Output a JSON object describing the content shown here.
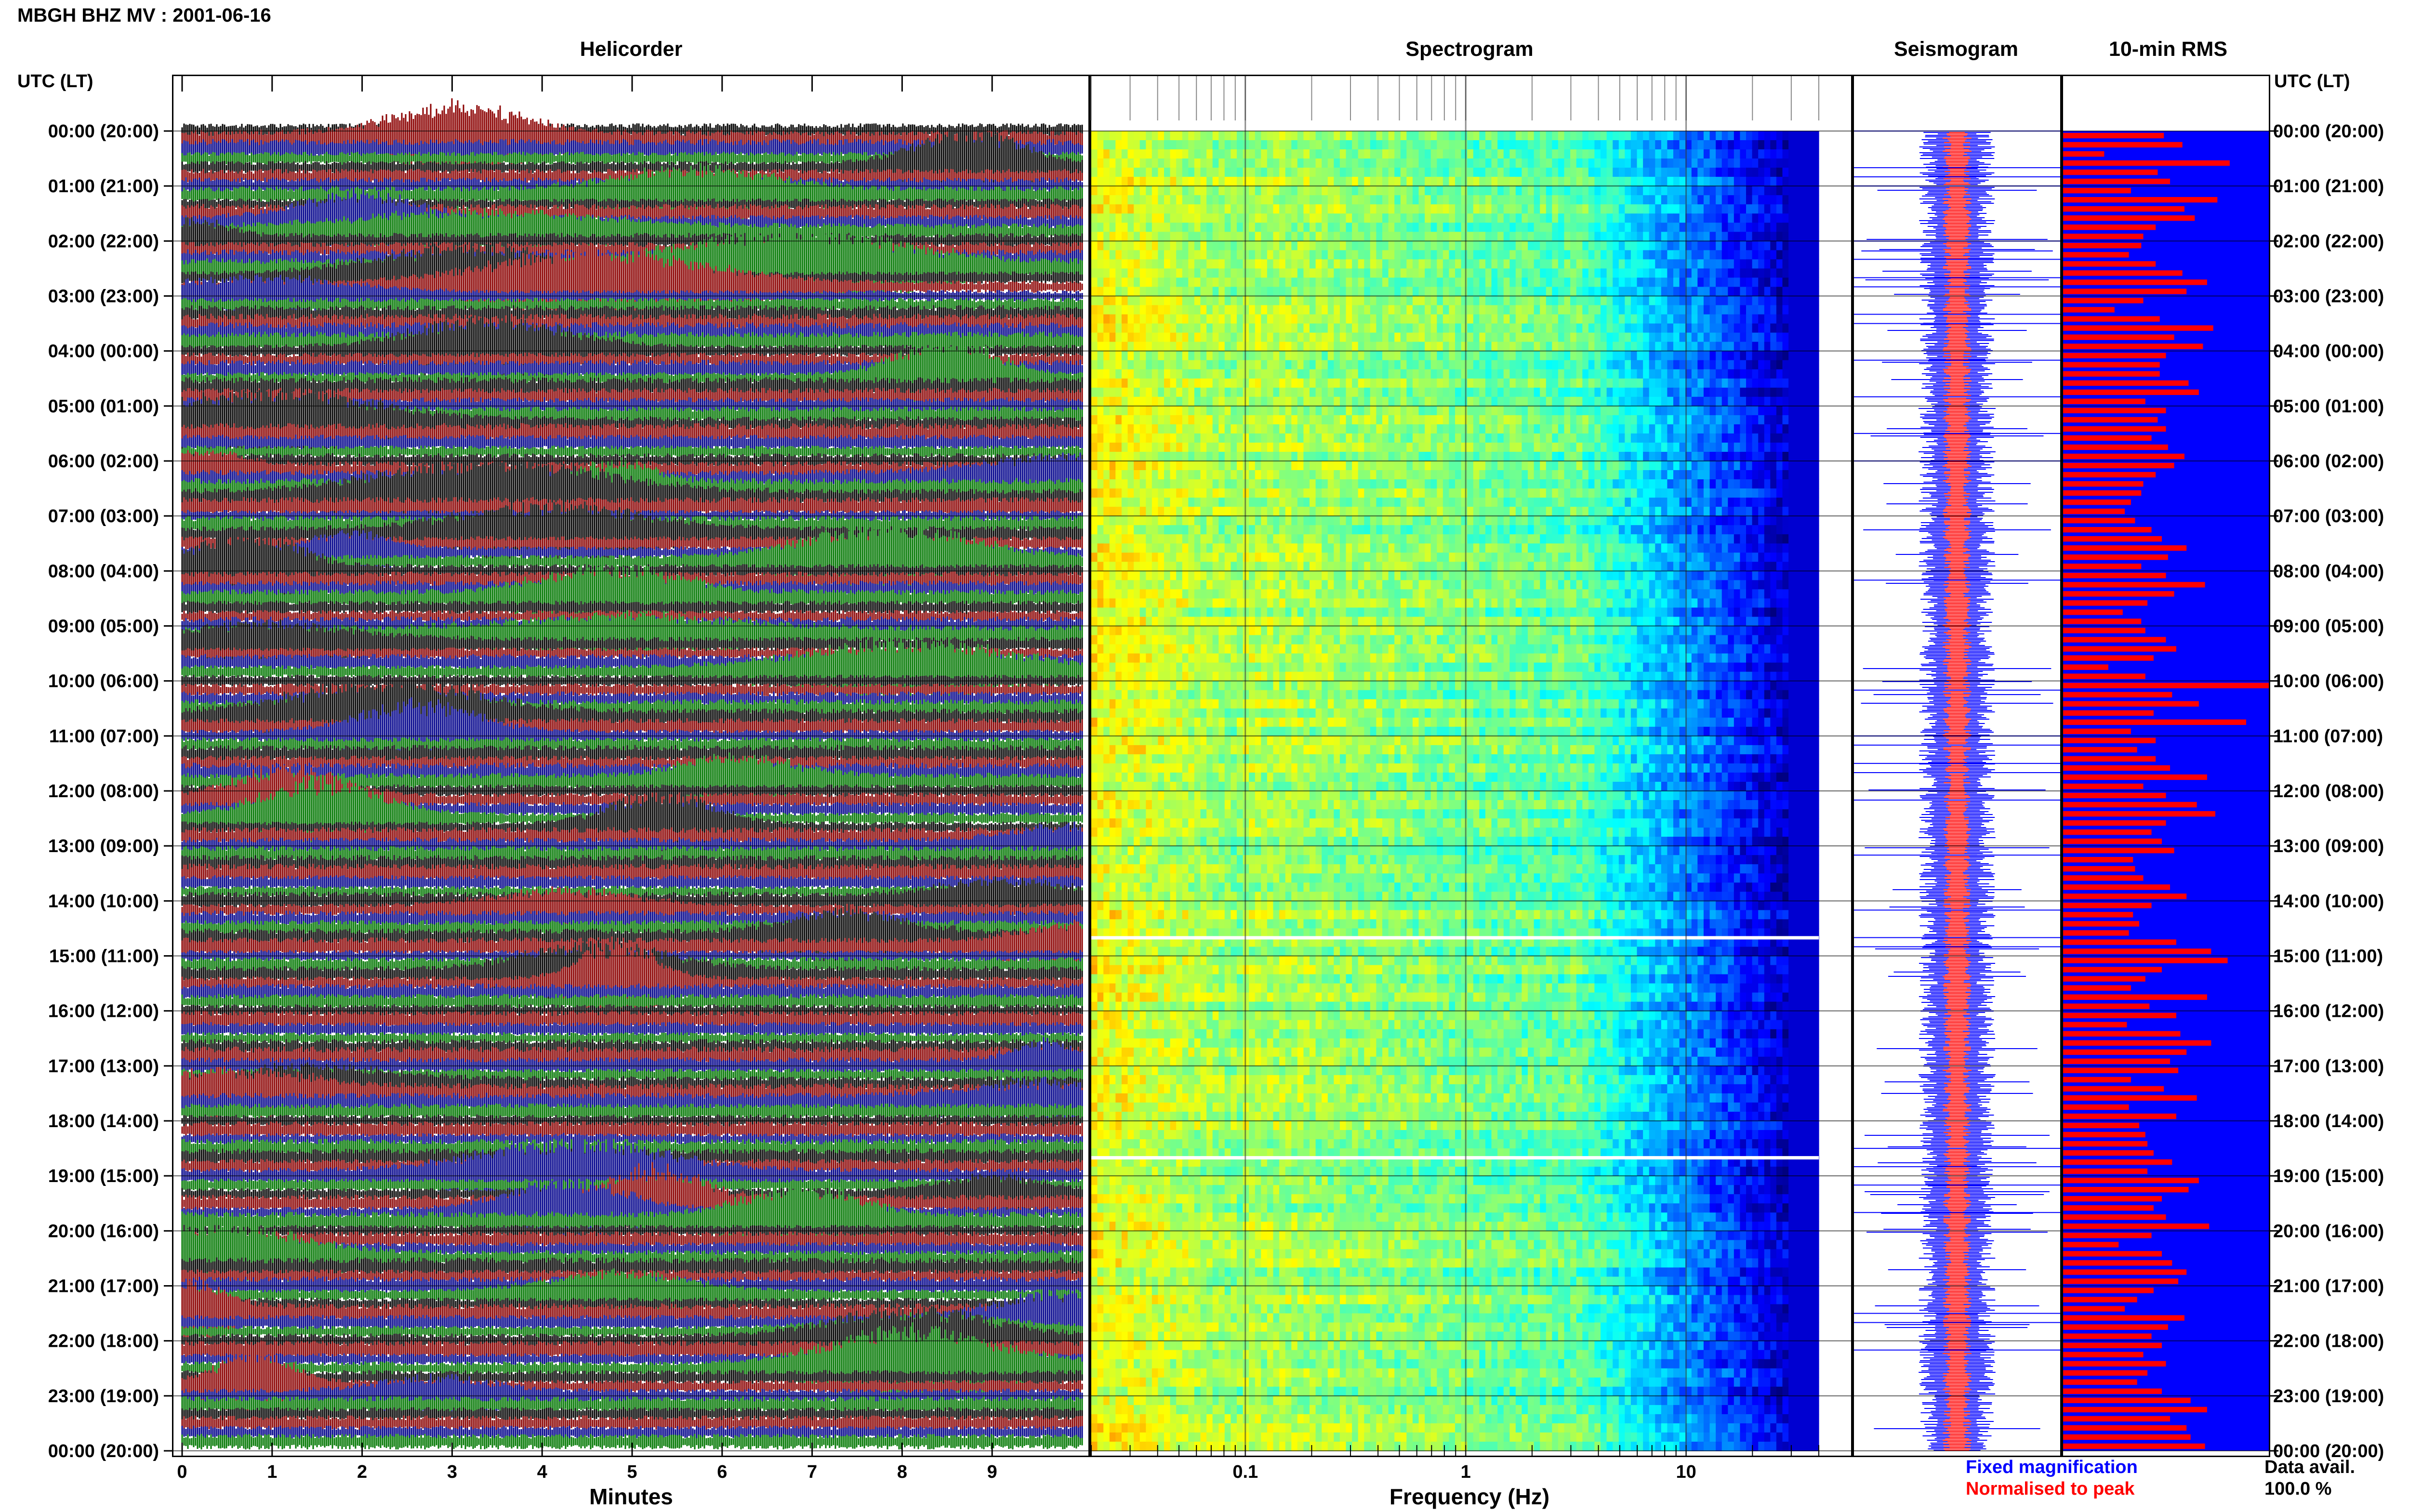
{
  "header": {
    "title": "MBGH BHZ MV : 2001-06-16",
    "panels": [
      "Helicorder",
      "Spectrogram",
      "Seismogram",
      "10-min RMS"
    ],
    "time_axis_label": "UTC (LT)"
  },
  "footer": {
    "minutes_label": "Minutes",
    "frequency_label": "Frequency (Hz)",
    "legend_fixed": "Fixed magnification",
    "legend_normalised": "Normalised to peak",
    "data_avail_label": "Data avail.",
    "data_avail_value": "100.0 %"
  },
  "colors": {
    "helicorder_traces": [
      "#000000",
      "#8b0000",
      "#00008b",
      "#007700"
    ],
    "fixed_magnification": "#0000ff",
    "normalised_to_peak": "#ff0000",
    "rms_background": "#0000ff",
    "rms_bars": "#ff0000"
  },
  "chart_data": [
    {
      "type": "line",
      "title": "Helicorder",
      "xlabel": "Minutes",
      "ylabel": "UTC (LT)",
      "xlim": [
        0,
        10
      ],
      "x_ticks": [
        0,
        1,
        2,
        3,
        4,
        5,
        6,
        7,
        8,
        9
      ],
      "rows_per_hour": 6,
      "row_minutes": 10,
      "time_ticks": [
        "00:00 (20:00)",
        "01:00 (21:00)",
        "02:00 (22:00)",
        "03:00 (23:00)",
        "04:00 (00:00)",
        "05:00 (01:00)",
        "06:00 (02:00)",
        "07:00 (03:00)",
        "08:00 (04:00)",
        "09:00 (05:00)",
        "10:00 (06:00)",
        "11:00 (07:00)",
        "12:00 (08:00)",
        "13:00 (09:00)",
        "14:00 (10:00)",
        "15:00 (11:00)",
        "16:00 (12:00)",
        "17:00 (13:00)",
        "18:00 (14:00)",
        "19:00 (15:00)",
        "20:00 (16:00)",
        "21:00 (17:00)",
        "22:00 (18:00)",
        "23:00 (19:00)",
        "00:00 (20:00)"
      ],
      "trace_colors": [
        "black",
        "dark red",
        "dark blue",
        "green"
      ]
    },
    {
      "type": "heatmap",
      "title": "Spectrogram",
      "xlabel": "Frequency (Hz)",
      "x_scale": "log",
      "xlim": [
        0.02,
        40
      ],
      "x_tick_labels": [
        "0.1",
        "1",
        "10"
      ],
      "x_tick_values": [
        0.1,
        1,
        10
      ],
      "colormap": "jet",
      "gaps_utc": [
        "14:40",
        "18:40"
      ]
    },
    {
      "type": "line",
      "title": "Seismogram",
      "series": [
        {
          "name": "Fixed magnification",
          "color": "blue"
        },
        {
          "name": "Normalised to peak",
          "color": "red"
        }
      ]
    },
    {
      "type": "bar",
      "title": "10-min RMS",
      "orientation": "horizontal",
      "bar_color": "red",
      "background": "blue",
      "values": [
        0.49,
        0.58,
        0.2,
        0.81,
        0.46,
        0.52,
        0.33,
        0.75,
        0.59,
        0.64,
        0.45,
        0.39,
        0.38,
        0.32,
        0.45,
        0.58,
        0.7,
        0.6,
        0.39,
        0.25,
        0.47,
        0.73,
        0.54,
        0.68,
        0.5,
        0.47,
        0.47,
        0.61,
        0.66,
        0.4,
        0.5,
        0.46,
        0.5,
        0.43,
        0.51,
        0.59,
        0.54,
        0.45,
        0.39,
        0.38,
        0.33,
        0.3,
        0.35,
        0.43,
        0.48,
        0.6,
        0.51,
        0.38,
        0.5,
        0.69,
        0.54,
        0.41,
        0.29,
        0.38,
        0.4,
        0.5,
        0.55,
        0.44,
        0.22,
        0.4,
        1.0,
        0.53,
        0.66,
        0.44,
        0.89,
        0.33,
        0.45,
        0.36,
        0.45,
        0.52,
        0.7,
        0.39,
        0.5,
        0.65,
        0.74,
        0.5,
        0.43,
        0.48,
        0.54,
        0.34,
        0.35,
        0.39,
        0.52,
        0.6,
        0.43,
        0.34,
        0.37,
        0.32,
        0.55,
        0.72,
        0.8,
        0.48,
        0.4,
        0.33,
        0.7,
        0.42,
        0.55,
        0.31,
        0.57,
        0.72,
        0.6,
        0.52,
        0.56,
        0.33,
        0.49,
        0.65,
        0.32,
        0.55,
        0.37,
        0.4,
        0.41,
        0.44,
        0.53,
        0.41,
        0.66,
        0.61,
        0.48,
        0.44,
        0.5,
        0.71,
        0.43,
        0.27,
        0.48,
        0.53,
        0.6,
        0.56,
        0.44,
        0.36,
        0.3,
        0.59,
        0.51,
        0.43,
        0.48,
        0.39,
        0.5,
        0.41,
        0.36,
        0.48,
        0.62,
        0.7,
        0.52,
        0.6,
        0.62,
        0.69
      ]
    }
  ]
}
